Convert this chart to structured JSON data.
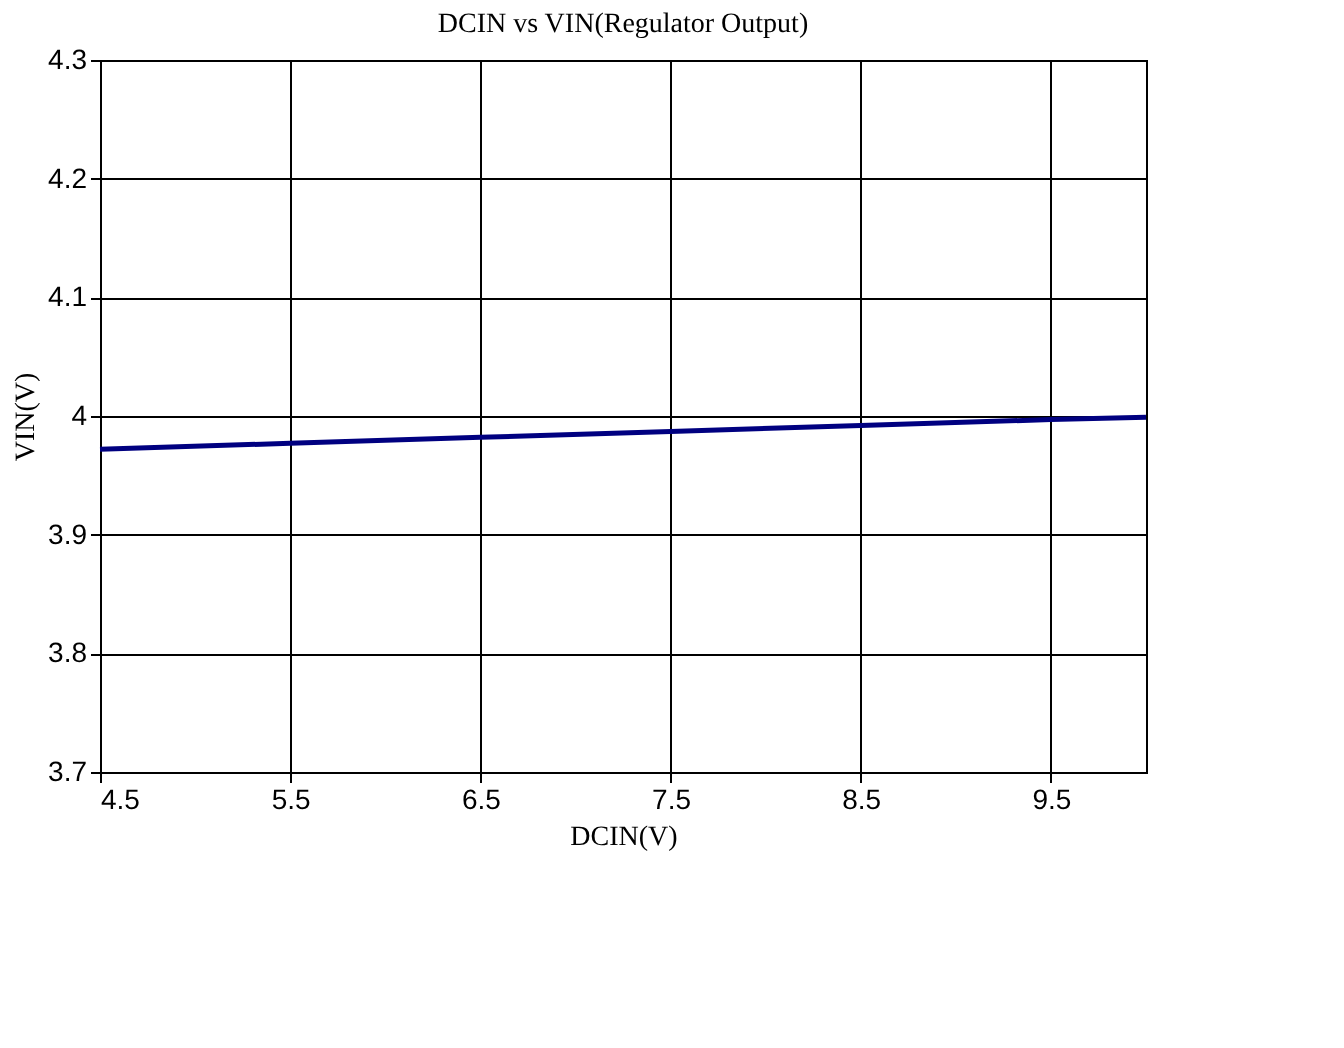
{
  "chart_data": {
    "type": "line",
    "title": "DCIN vs VIN(Regulator Output)",
    "xlabel": "DCIN(V)",
    "ylabel": "VIN(V)",
    "x": [
      4.5,
      5.5,
      6.5,
      7.5,
      8.5,
      9.5,
      10
    ],
    "series": [
      {
        "color": "#000080",
        "values": [
          3.972,
          3.977,
          3.982,
          3.987,
          3.992,
          3.997,
          3.999
        ]
      }
    ],
    "xlim": [
      4.5,
      10
    ],
    "xticks": [
      4.5,
      5.5,
      6.5,
      7.5,
      8.5,
      9.5
    ],
    "ylim": [
      3.7,
      4.3
    ],
    "yticks": [
      3.7,
      3.8,
      3.9,
      4,
      4.1,
      4.2,
      4.3
    ],
    "grid": true,
    "marker": "none",
    "line_style": "solid"
  }
}
